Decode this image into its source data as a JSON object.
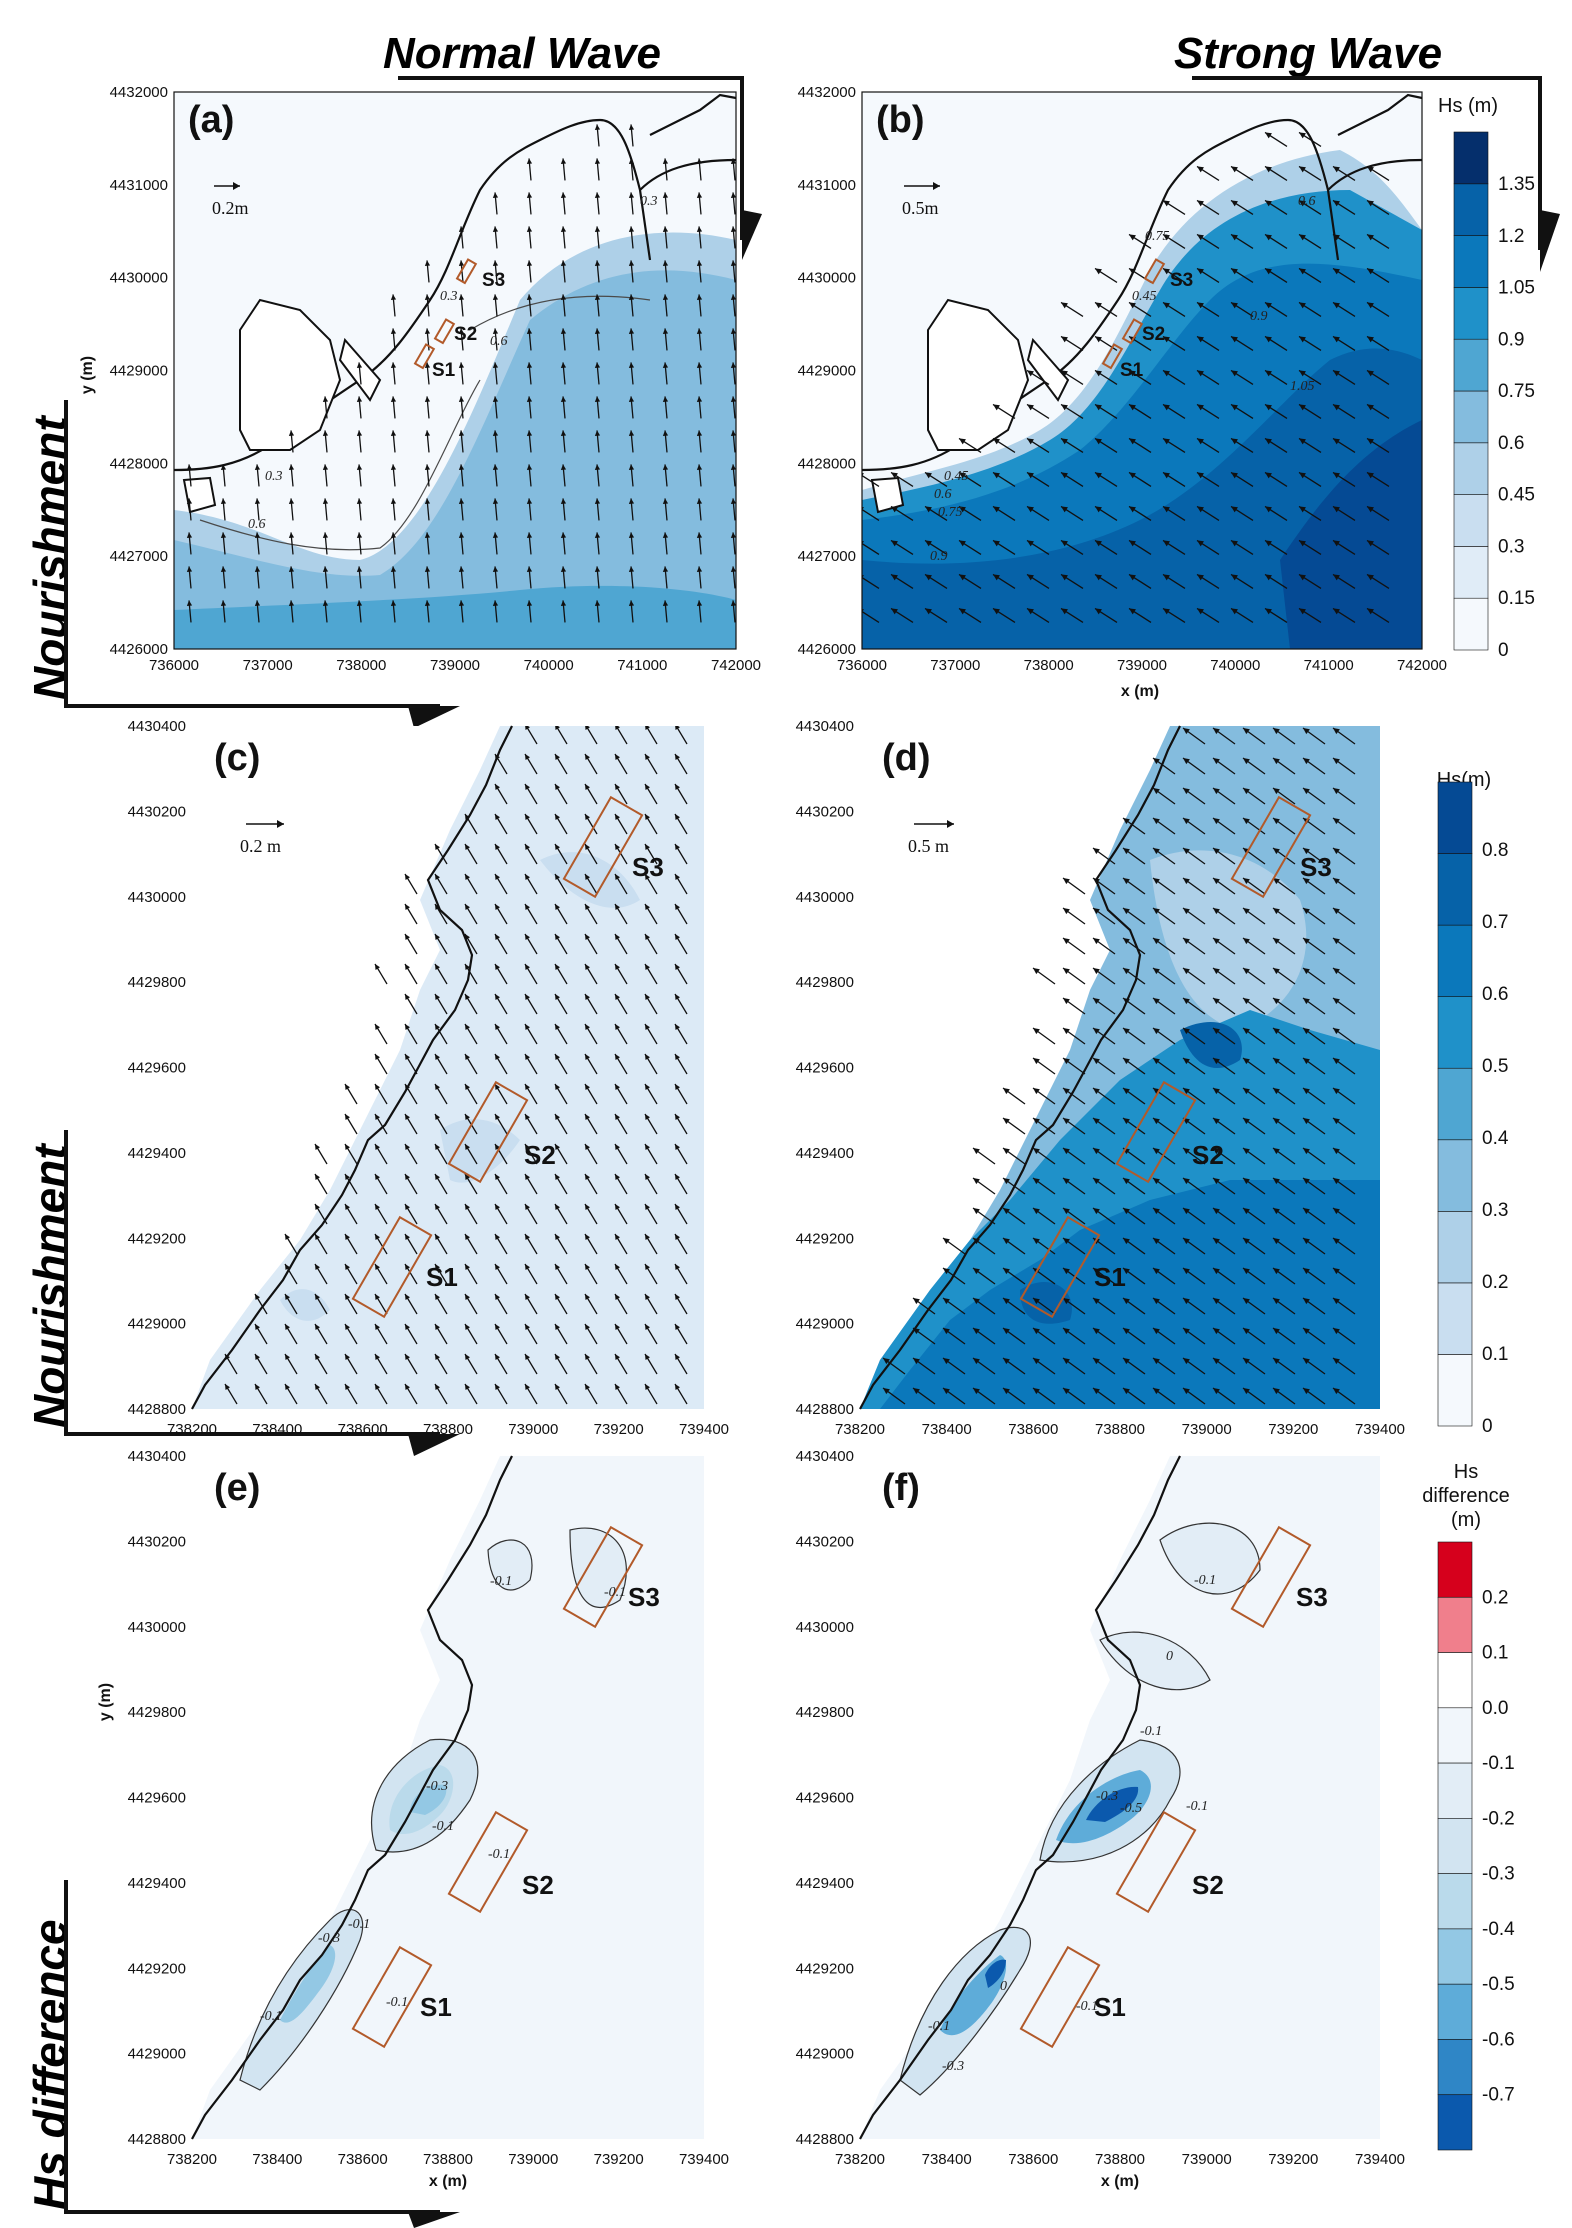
{
  "column_titles": {
    "left": "Normal Wave",
    "right": "Strong Wave"
  },
  "row_titles": [
    "Nourishment",
    "Nourishment",
    "Hs difference"
  ],
  "colors": {
    "hs_levels": [
      "#f5f9fd",
      "#e0ecf7",
      "#c9def0",
      "#aed0e8",
      "#84bcde",
      "#4fa6d2",
      "#1f91c9",
      "#0b78bb",
      "#0662a8",
      "#054a94",
      "#052f6c"
    ],
    "diff_levels": [
      "#ffffff",
      "#f1f6fb",
      "#e2edf6",
      "#d2e4f1",
      "#badaeb",
      "#93c8e4",
      "#5eacd9",
      "#2f86c6",
      "#0b59ad"
    ],
    "diff_pos": [
      "#f07f8c",
      "#d6001c"
    ],
    "outline": "#111111",
    "structure": "#b25a2a"
  },
  "chart_data": [
    {
      "id": "a",
      "panel_label": "(a)",
      "type": "heatmap",
      "description_visible": "Hs contours with wave vectors, large domain, normal wave",
      "xlabel": "",
      "ylabel": "y (m)",
      "xlim": [
        736000,
        742000
      ],
      "ylim": [
        4426000,
        4432000
      ],
      "xticks": [
        "736000",
        "737000",
        "738000",
        "739000",
        "740000",
        "741000",
        "742000"
      ],
      "yticks": [
        "4426000",
        "4427000",
        "4428000",
        "4429000",
        "4430000",
        "4431000",
        "4432000"
      ],
      "scale_arrow": "0.2m",
      "contour_labels": [
        "0.3",
        "0.6",
        "0.3",
        "0.6",
        "0.3"
      ],
      "sites": [
        "S1",
        "S2",
        "S3"
      ],
      "hs_peak_level": 6
    },
    {
      "id": "b",
      "panel_label": "(b)",
      "type": "heatmap",
      "xlabel": "x (m)",
      "ylabel": "",
      "xlim": [
        736000,
        742000
      ],
      "ylim": [
        4426000,
        4432000
      ],
      "xticks": [
        "736000",
        "737000",
        "738000",
        "739000",
        "740000",
        "741000",
        "742000"
      ],
      "yticks": [
        "4426000",
        "4427000",
        "4428000",
        "4429000",
        "4430000",
        "4431000",
        "4432000"
      ],
      "scale_arrow": "0.5m",
      "contour_labels": [
        "0.45",
        "0.6",
        "0.75",
        "0.9",
        "0.45",
        "0.6",
        "0.75",
        "0.9",
        "1.05"
      ],
      "sites": [
        "S1",
        "S2",
        "S3"
      ],
      "colorbar": {
        "title": "Hs (m)",
        "ticks": [
          "1.35",
          "1.2",
          "1.05",
          "0.9",
          "0.75",
          "0.6",
          "0.45",
          "0.3",
          "0.15",
          "0"
        ]
      },
      "hs_peak_level": 10
    },
    {
      "id": "c",
      "panel_label": "(c)",
      "type": "heatmap",
      "xlabel": "",
      "ylabel": "",
      "xlim": [
        738200,
        739400
      ],
      "ylim": [
        4428800,
        4430400
      ],
      "xticks": [
        "738200",
        "738400",
        "738600",
        "738800",
        "739000",
        "739200",
        "739400"
      ],
      "yticks": [
        "4428800",
        "4429000",
        "4429200",
        "4429400",
        "4429600",
        "4429800",
        "4430000",
        "4430200",
        "4430400"
      ],
      "scale_arrow": "0.2 m",
      "sites": [
        "S1",
        "S2",
        "S3"
      ],
      "hs_peak_level": 3
    },
    {
      "id": "d",
      "panel_label": "(d)",
      "type": "heatmap",
      "xlabel": "",
      "ylabel": "",
      "xlim": [
        738200,
        739400
      ],
      "ylim": [
        4428800,
        4430400
      ],
      "xticks": [
        "738200",
        "738400",
        "738600",
        "738800",
        "739000",
        "739200",
        "739400"
      ],
      "yticks": [
        "4428800",
        "4429000",
        "4429200",
        "4429400",
        "4429600",
        "4429800",
        "4430000",
        "4430200",
        "4430400"
      ],
      "scale_arrow": "0.5 m",
      "sites": [
        "S1",
        "S2",
        "S3"
      ],
      "colorbar": {
        "title": "Hs(m)",
        "ticks": [
          "0.8",
          "0.7",
          "0.6",
          "0.5",
          "0.4",
          "0.3",
          "0.2",
          "0.1",
          "0"
        ]
      },
      "hs_peak_level": 8
    },
    {
      "id": "e",
      "panel_label": "(e)",
      "type": "heatmap",
      "xlabel": "x (m)",
      "ylabel": "y (m)",
      "xlim": [
        738200,
        739400
      ],
      "ylim": [
        4428800,
        4430400
      ],
      "xticks": [
        "738200",
        "738400",
        "738600",
        "738800",
        "739000",
        "739200",
        "739400"
      ],
      "yticks": [
        "4428800",
        "4429000",
        "4429200",
        "4429400",
        "4429600",
        "4429800",
        "4430000",
        "4430200",
        "4430400"
      ],
      "contour_labels": [
        "-0.1",
        "-0.1",
        "-0.3",
        "-0.1",
        "-0.1",
        "-0.3",
        "-0.1",
        "-0.1",
        "-0.1"
      ],
      "sites": [
        "S1",
        "S2",
        "S3"
      ],
      "diff_min_level": 5
    },
    {
      "id": "f",
      "panel_label": "(f)",
      "type": "heatmap",
      "xlabel": "x (m)",
      "ylabel": "",
      "xlim": [
        738200,
        739400
      ],
      "ylim": [
        4428800,
        4430400
      ],
      "xticks": [
        "738200",
        "738400",
        "738600",
        "738800",
        "739000",
        "739200",
        "739400"
      ],
      "yticks": [
        "4428800",
        "4429000",
        "4429200",
        "4429400",
        "4429600",
        "4429800",
        "4430000",
        "4430200",
        "4430400"
      ],
      "contour_labels": [
        "-0.1",
        "0",
        "-0.1",
        "-0.1",
        "-0.3",
        "-0.5",
        "-0.1",
        "-0.1",
        "-0.3",
        "0"
      ],
      "sites": [
        "S1",
        "S2",
        "S3"
      ],
      "colorbar": {
        "title_lines": [
          "Hs",
          "difference",
          "(m)"
        ],
        "ticks": [
          "0.2",
          "0.1",
          "0.0",
          "-0.1",
          "-0.2",
          "-0.3",
          "-0.4",
          "-0.5",
          "-0.6",
          "-0.7"
        ]
      },
      "diff_min_level": 8
    }
  ]
}
